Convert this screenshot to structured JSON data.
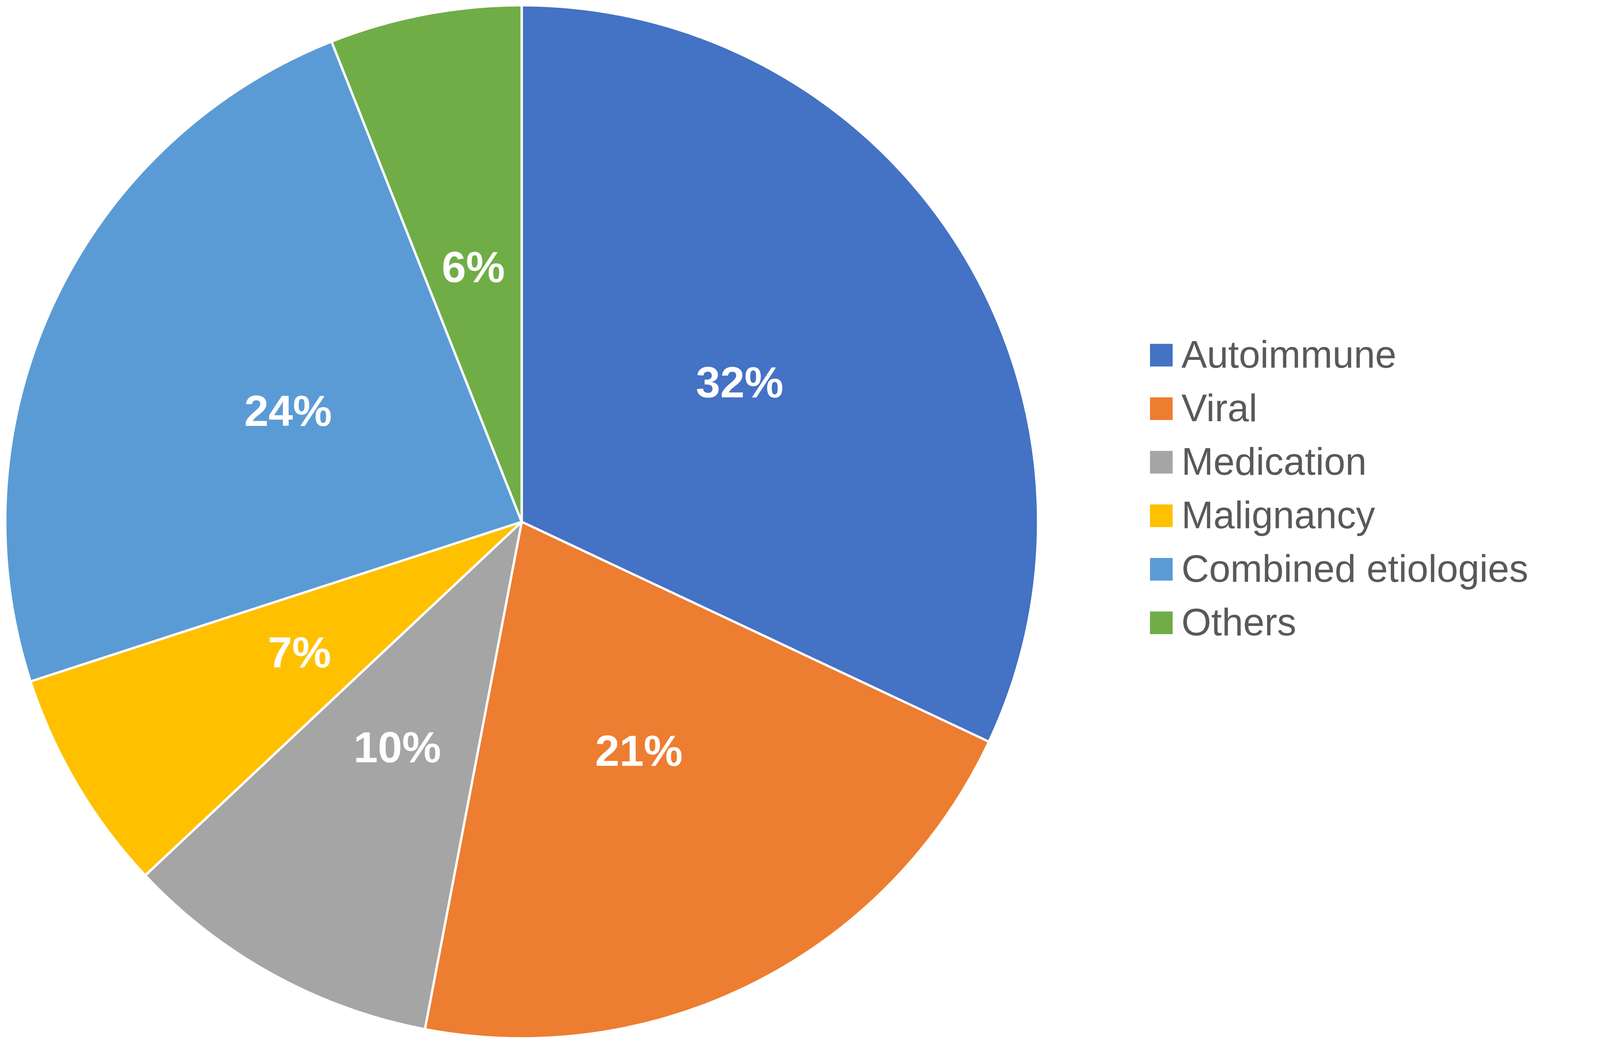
{
  "chart_data": {
    "type": "pie",
    "categories": [
      "Autoimmune",
      "Viral",
      "Medication",
      "Malignancy",
      "Combined etiologies",
      "Others"
    ],
    "values": [
      32,
      21,
      10,
      7,
      24,
      6
    ],
    "value_labels": [
      "32%",
      "21%",
      "10%",
      "7%",
      "24%",
      "6%"
    ],
    "colors": [
      "#4472c4",
      "#ed7d31",
      "#a5a5a5",
      "#ffc000",
      "#5b9bd5",
      "#70ad47"
    ],
    "data_labels": true,
    "legend": "right"
  }
}
